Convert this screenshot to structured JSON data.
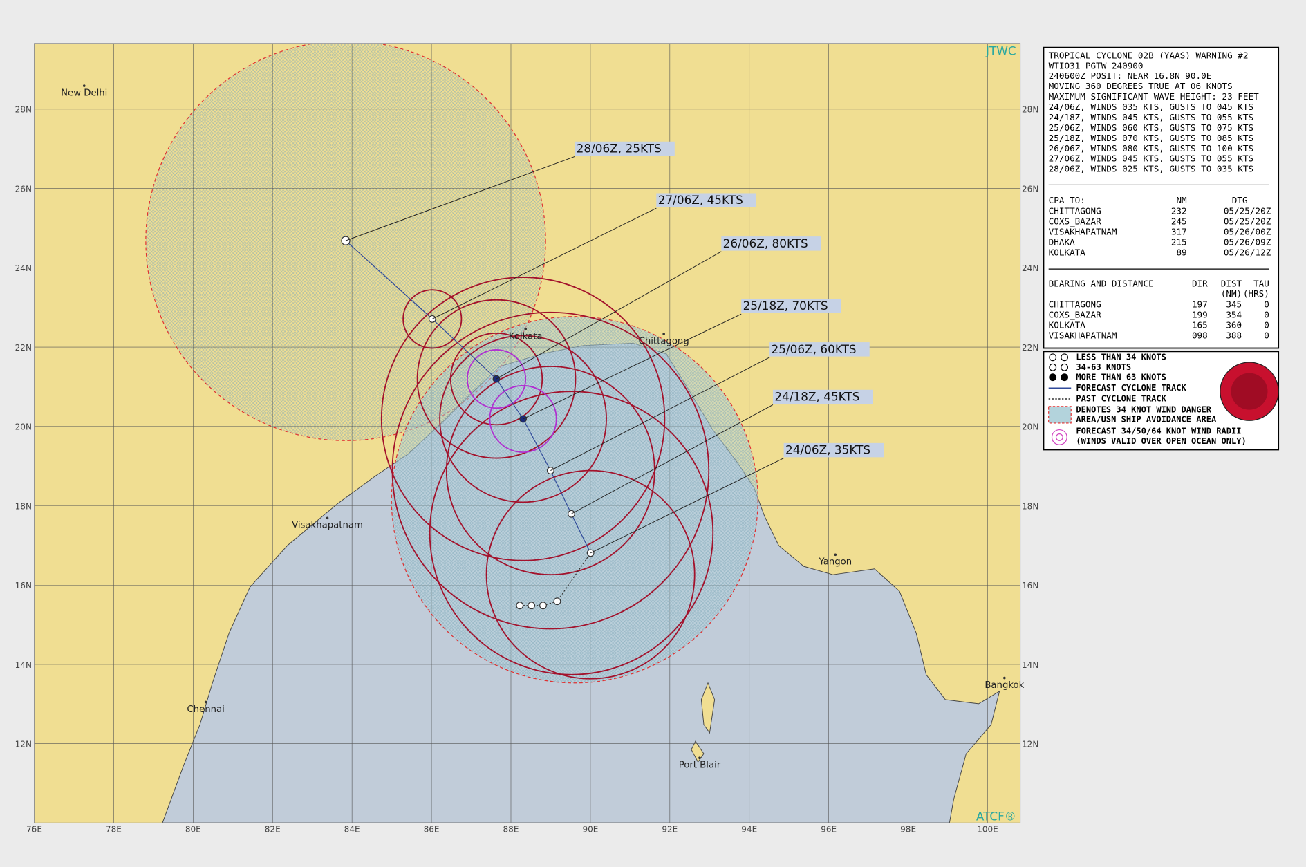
{
  "header": {
    "agency": "JTWC",
    "footer": "ATCF®"
  },
  "axes": {
    "lat_labels": [
      "28N",
      "26N",
      "24N",
      "22N",
      "20N",
      "18N",
      "16N",
      "14N",
      "12N"
    ],
    "lon_labels": [
      "76E",
      "78E",
      "80E",
      "82E",
      "84E",
      "86E",
      "88E",
      "90E",
      "92E",
      "94E",
      "96E",
      "98E",
      "100E"
    ]
  },
  "places": [
    "New Delhi",
    "Kolkata",
    "Chittagong",
    "Visakhapatnam",
    "Yangon",
    "Chennai",
    "Port Blair",
    "Bangkok"
  ],
  "track_labels": [
    "28/06Z, 25KTS",
    "27/06Z, 45KTS",
    "26/06Z, 80KTS",
    "25/18Z, 70KTS",
    "25/06Z, 60KTS",
    "24/18Z, 45KTS",
    "24/06Z, 35KTS"
  ],
  "info": {
    "lines": [
      "TROPICAL CYCLONE 02B (YAAS) WARNING #2",
      "WTIO31 PGTW 240900",
      "240600Z POSIT: NEAR 16.8N 90.0E",
      "MOVING 360 DEGREES TRUE AT 06 KNOTS",
      "MAXIMUM SIGNIFICANT WAVE HEIGHT: 23 FEET",
      "24/06Z, WINDS 035 KTS, GUSTS TO 045 KTS",
      "24/18Z, WINDS 045 KTS, GUSTS TO 055 KTS",
      "25/06Z, WINDS 060 KTS, GUSTS TO 075 KTS",
      "25/18Z, WINDS 070 KTS, GUSTS TO 085 KTS",
      "26/06Z, WINDS 080 KTS, GUSTS TO 100 KTS",
      "27/06Z, WINDS 045 KTS, GUSTS TO 055 KTS",
      "28/06Z, WINDS 025 KTS, GUSTS TO 035 KTS"
    ],
    "cpa": {
      "header": [
        "CPA TO:",
        "NM",
        "DTG"
      ],
      "rows": [
        [
          "CHITTAGONG",
          "232",
          "05/25/20Z"
        ],
        [
          "COXS_BAZAR",
          "245",
          "05/25/20Z"
        ],
        [
          "VISAKHAPATNAM",
          "317",
          "05/26/00Z"
        ],
        [
          "DHAKA",
          "215",
          "05/26/09Z"
        ],
        [
          "KOLKATA",
          "89",
          "05/26/12Z"
        ]
      ]
    },
    "bearing": {
      "header": [
        "BEARING AND DISTANCE",
        "DIR",
        "DIST",
        "TAU"
      ],
      "subheader": [
        "(NM)",
        "(HRS)"
      ],
      "rows": [
        [
          "CHITTAGONG",
          "197",
          "345",
          "0"
        ],
        [
          "COXS_BAZAR",
          "199",
          "354",
          "0"
        ],
        [
          "KOLKATA",
          "165",
          "360",
          "0"
        ],
        [
          "VISAKHAPATNAM",
          "098",
          "388",
          "0"
        ]
      ]
    }
  },
  "legend": [
    "LESS THAN 34 KNOTS",
    "34-63 KNOTS",
    "MORE THAN 63 KNOTS",
    "FORECAST CYCLONE TRACK",
    "PAST CYCLONE TRACK",
    "DENOTES 34 KNOT WIND DANGER",
    "AREA/USN SHIP AVOIDANCE AREA",
    "FORECAST 34/50/64 KNOT WIND RADII",
    "(WINDS VALID OVER OPEN OCEAN ONLY)"
  ]
}
